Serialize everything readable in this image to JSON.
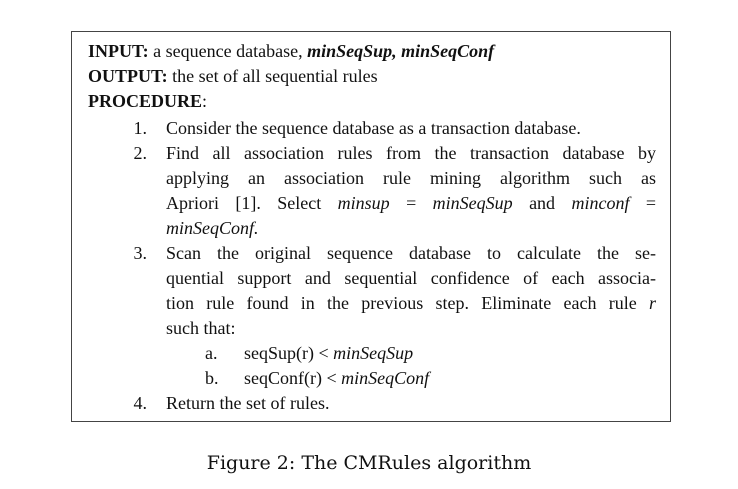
{
  "algorithm": {
    "input_label": "INPUT:",
    "input_text": "a sequence database,",
    "input_params": "minSeqSup, minSeqConf",
    "output_label": "OUTPUT:",
    "output_text": "the set of all sequential rules",
    "procedure_label": "PROCEDURE",
    "procedure_colon": ":",
    "steps": [
      {
        "num": "1.",
        "lines": [
          "Consider the sequence database as a transaction database."
        ]
      },
      {
        "num": "2.",
        "lines": [
          "Find all association rules from the transaction database by",
          "applying an association rule mining algorithm such as",
          "Apriori [1]. Select",
          "minsup",
          "=",
          "minSeqSup",
          "and",
          "minconf",
          "=",
          "minSeqConf."
        ]
      },
      {
        "num": "3.",
        "lines": [
          "Scan the original sequence database to calculate the se-",
          "quential support and sequential confidence of each associa-",
          "tion rule found in the previous step. Eliminate each rule",
          "r",
          "such that:"
        ],
        "sub": [
          {
            "letter": "a.",
            "text": "seqSup(r) <",
            "param": "minSeqSup"
          },
          {
            "letter": "b.",
            "text": "seqConf(r) <",
            "param": "minSeqConf"
          }
        ]
      },
      {
        "num": "4.",
        "lines": [
          "Return the set of rules."
        ]
      }
    ]
  },
  "caption": "Figure 2: The CMRules algorithm"
}
